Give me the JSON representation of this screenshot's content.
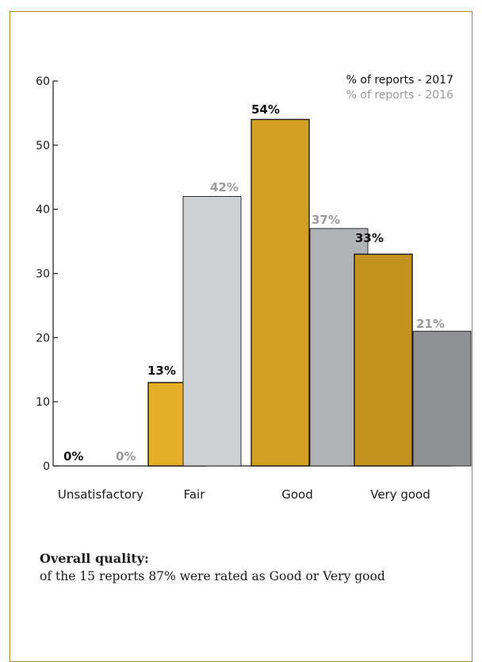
{
  "chart_data": {
    "type": "bar",
    "categories": [
      "Unsatisfactory",
      "Fair",
      "Good",
      "Very good"
    ],
    "series": [
      {
        "name": "% of reports - 2017",
        "values": [
          0,
          13,
          54,
          33
        ],
        "labels": [
          "0%",
          "13%",
          "54%",
          "33%"
        ],
        "label_color": "#111111",
        "colors": [
          "#e4ae26",
          "#e4ae26",
          "#d3a121",
          "#c3921f"
        ]
      },
      {
        "name": "% of reports - 2016",
        "values": [
          0,
          42,
          37,
          21
        ],
        "labels": [
          "0%",
          "42%",
          "37%",
          "21%"
        ],
        "label_color": "#9a9a9a",
        "colors": [
          "#cfd0d2",
          "#cfd0d2",
          "#b1b3b6",
          "#8e9093"
        ]
      }
    ],
    "yticks": [
      0,
      10,
      20,
      30,
      40,
      50,
      60
    ],
    "ylim": [
      0,
      60
    ],
    "legend_position": "top-right",
    "bar_outline": "#1a1a1a"
  },
  "caption": {
    "title": "Overall quality:",
    "text": "of the 15 reports 87% were rated as Good or Very good"
  }
}
